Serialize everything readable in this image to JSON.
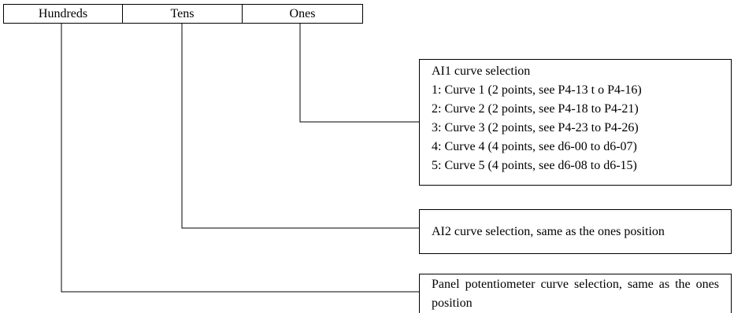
{
  "positions": {
    "hundreds": "Hundreds",
    "tens": "Tens",
    "ones": "Ones"
  },
  "ones_box": {
    "title": "AI1 curve selection",
    "options": [
      "1: Curve 1 (2 points, see P4-13 t o P4-16)",
      "2: Curve 2 (2 points, see P4-18 to P4-21)",
      "3: Curve 3 (2 points, see P4-23 to P4-26)",
      "4: Curve 4 (4 points, see d6-00 to d6-07)",
      "5: Curve 5 (4 points, see d6-08 to d6-15)"
    ]
  },
  "tens_box": {
    "text": "AI2 curve selection, same as the ones position"
  },
  "hundreds_box": {
    "text": "Panel potentiometer curve selection, same as the ones position"
  }
}
